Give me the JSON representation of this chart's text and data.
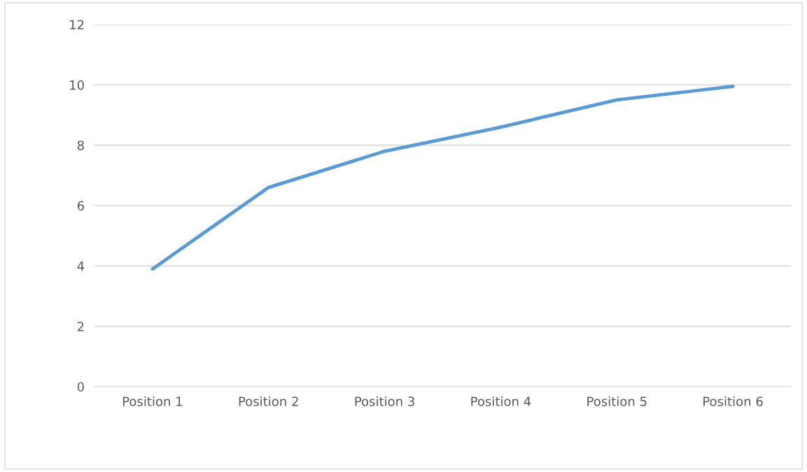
{
  "chart_data": {
    "type": "line",
    "categories": [
      "Position 1",
      "Position 2",
      "Position 3",
      "Position 4",
      "Position 5",
      "Position 6"
    ],
    "series": [
      {
        "color": "#5b9bd5",
        "values": [
          3.9,
          6.6,
          7.8,
          8.6,
          9.5,
          9.95
        ]
      }
    ],
    "ylim": [
      0,
      12
    ],
    "yticks": [
      0,
      2,
      4,
      6,
      8,
      10,
      12
    ],
    "grid": "y",
    "legend": false,
    "marker": "none",
    "line_style": "solid"
  }
}
